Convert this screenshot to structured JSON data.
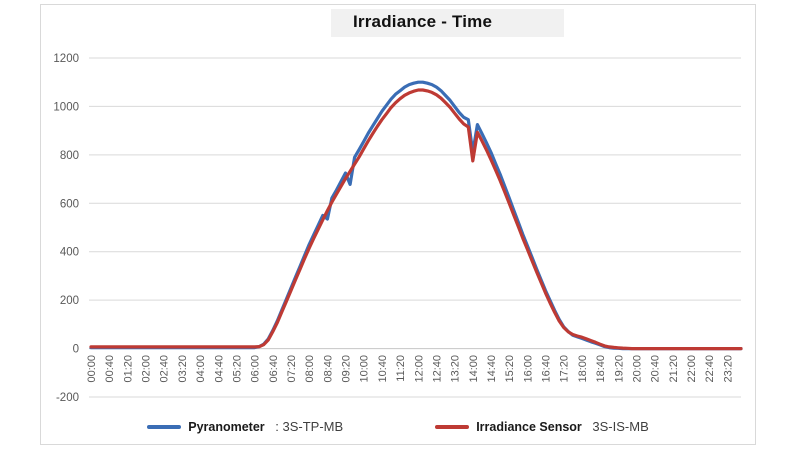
{
  "chart": {
    "title": "Irradiance - Time"
  },
  "legend": {
    "items": [
      {
        "bold": "Pyranometer",
        "rest": " : 3S-TP-MB",
        "color": "#3a6db5"
      },
      {
        "bold": "Irradiance Sensor",
        "rest": " 3S-IS-MB",
        "color": "#be3a34"
      }
    ]
  },
  "colors": {
    "gridline": "#d9d9d9",
    "zero_line": "#c6c6c6",
    "axis_label": "#595959",
    "title_band": "#f1f1f1",
    "frame_border": "#d9d9d9"
  },
  "chart_data": {
    "type": "line",
    "title": "Irradiance - Time",
    "xlabel": "",
    "ylabel": "",
    "ylim": [
      -200,
      1200
    ],
    "yticks": [
      -200,
      0,
      200,
      400,
      600,
      800,
      1000,
      1200
    ],
    "grid": true,
    "legend_position": "bottom",
    "x_unit": "time (hh:mm)",
    "x_start_min": 0,
    "x_step_min": 10,
    "x_tick_step_min": 40,
    "x_tick_labels": [
      "00:00",
      "00:40",
      "01:20",
      "02:00",
      "02:40",
      "03:20",
      "04:00",
      "04:40",
      "05:20",
      "06:00",
      "06:40",
      "07:20",
      "08:00",
      "08:40",
      "09:20",
      "10:00",
      "10:40",
      "11:20",
      "12:00",
      "12:40",
      "13:20",
      "14:00",
      "14:40",
      "15:20",
      "16:00",
      "16:40",
      "17:20",
      "18:00",
      "18:40",
      "19:20",
      "20:00",
      "20:40",
      "21:20",
      "22:00",
      "22:40",
      "23:20"
    ],
    "series": [
      {
        "name": "Pyranometer : 3S-TP-MB",
        "color": "#3a6db5",
        "values": [
          4,
          4,
          4,
          4,
          4,
          4,
          4,
          4,
          4,
          4,
          4,
          4,
          4,
          4,
          4,
          4,
          4,
          4,
          4,
          4,
          4,
          4,
          4,
          4,
          4,
          4,
          4,
          4,
          4,
          4,
          4,
          4,
          4,
          4,
          4,
          4,
          4,
          8,
          18,
          40,
          75,
          115,
          160,
          205,
          250,
          295,
          340,
          385,
          430,
          470,
          510,
          550,
          535,
          622,
          655,
          690,
          725,
          678,
          790,
          822,
          855,
          890,
          920,
          950,
          980,
          1005,
          1030,
          1050,
          1065,
          1080,
          1090,
          1096,
          1100,
          1100,
          1096,
          1090,
          1080,
          1065,
          1045,
          1025,
          1000,
          975,
          955,
          945,
          810,
          925,
          888,
          850,
          810,
          765,
          720,
          672,
          622,
          572,
          522,
          472,
          425,
          378,
          330,
          285,
          240,
          198,
          158,
          120,
          90,
          70,
          55,
          48,
          42,
          35,
          28,
          22,
          15,
          8,
          4,
          2,
          1,
          0,
          0,
          0,
          0,
          0,
          0,
          0,
          0,
          0,
          0,
          0,
          0,
          0,
          0,
          0,
          0,
          0,
          0,
          0,
          0,
          0,
          0,
          0,
          0,
          0,
          0,
          0
        ]
      },
      {
        "name": "Irradiance Sensor 3S-IS-MB",
        "color": "#be3a34",
        "values": [
          7,
          7,
          7,
          7,
          7,
          7,
          7,
          7,
          7,
          7,
          7,
          7,
          7,
          7,
          7,
          7,
          7,
          7,
          7,
          7,
          7,
          7,
          7,
          7,
          7,
          7,
          7,
          7,
          7,
          7,
          7,
          7,
          7,
          7,
          7,
          7,
          7,
          8,
          16,
          36,
          70,
          108,
          152,
          196,
          240,
          284,
          328,
          372,
          415,
          455,
          494,
          532,
          570,
          605,
          638,
          670,
          702,
          732,
          762,
          792,
          825,
          858,
          888,
          918,
          945,
          970,
          995,
          1015,
          1032,
          1046,
          1056,
          1063,
          1068,
          1068,
          1064,
          1058,
          1048,
          1034,
          1016,
          996,
          972,
          948,
          928,
          915,
          775,
          893,
          858,
          820,
          780,
          738,
          694,
          648,
          600,
          552,
          504,
          456,
          410,
          364,
          318,
          274,
          230,
          188,
          150,
          114,
          87,
          69,
          58,
          52,
          47,
          40,
          33,
          26,
          18,
          11,
          7,
          5,
          3,
          2,
          1,
          0,
          0,
          0,
          0,
          0,
          0,
          0,
          0,
          0,
          0,
          0,
          0,
          0,
          0,
          0,
          0,
          0,
          0,
          0,
          0,
          0,
          0,
          0,
          0,
          0
        ]
      }
    ]
  }
}
